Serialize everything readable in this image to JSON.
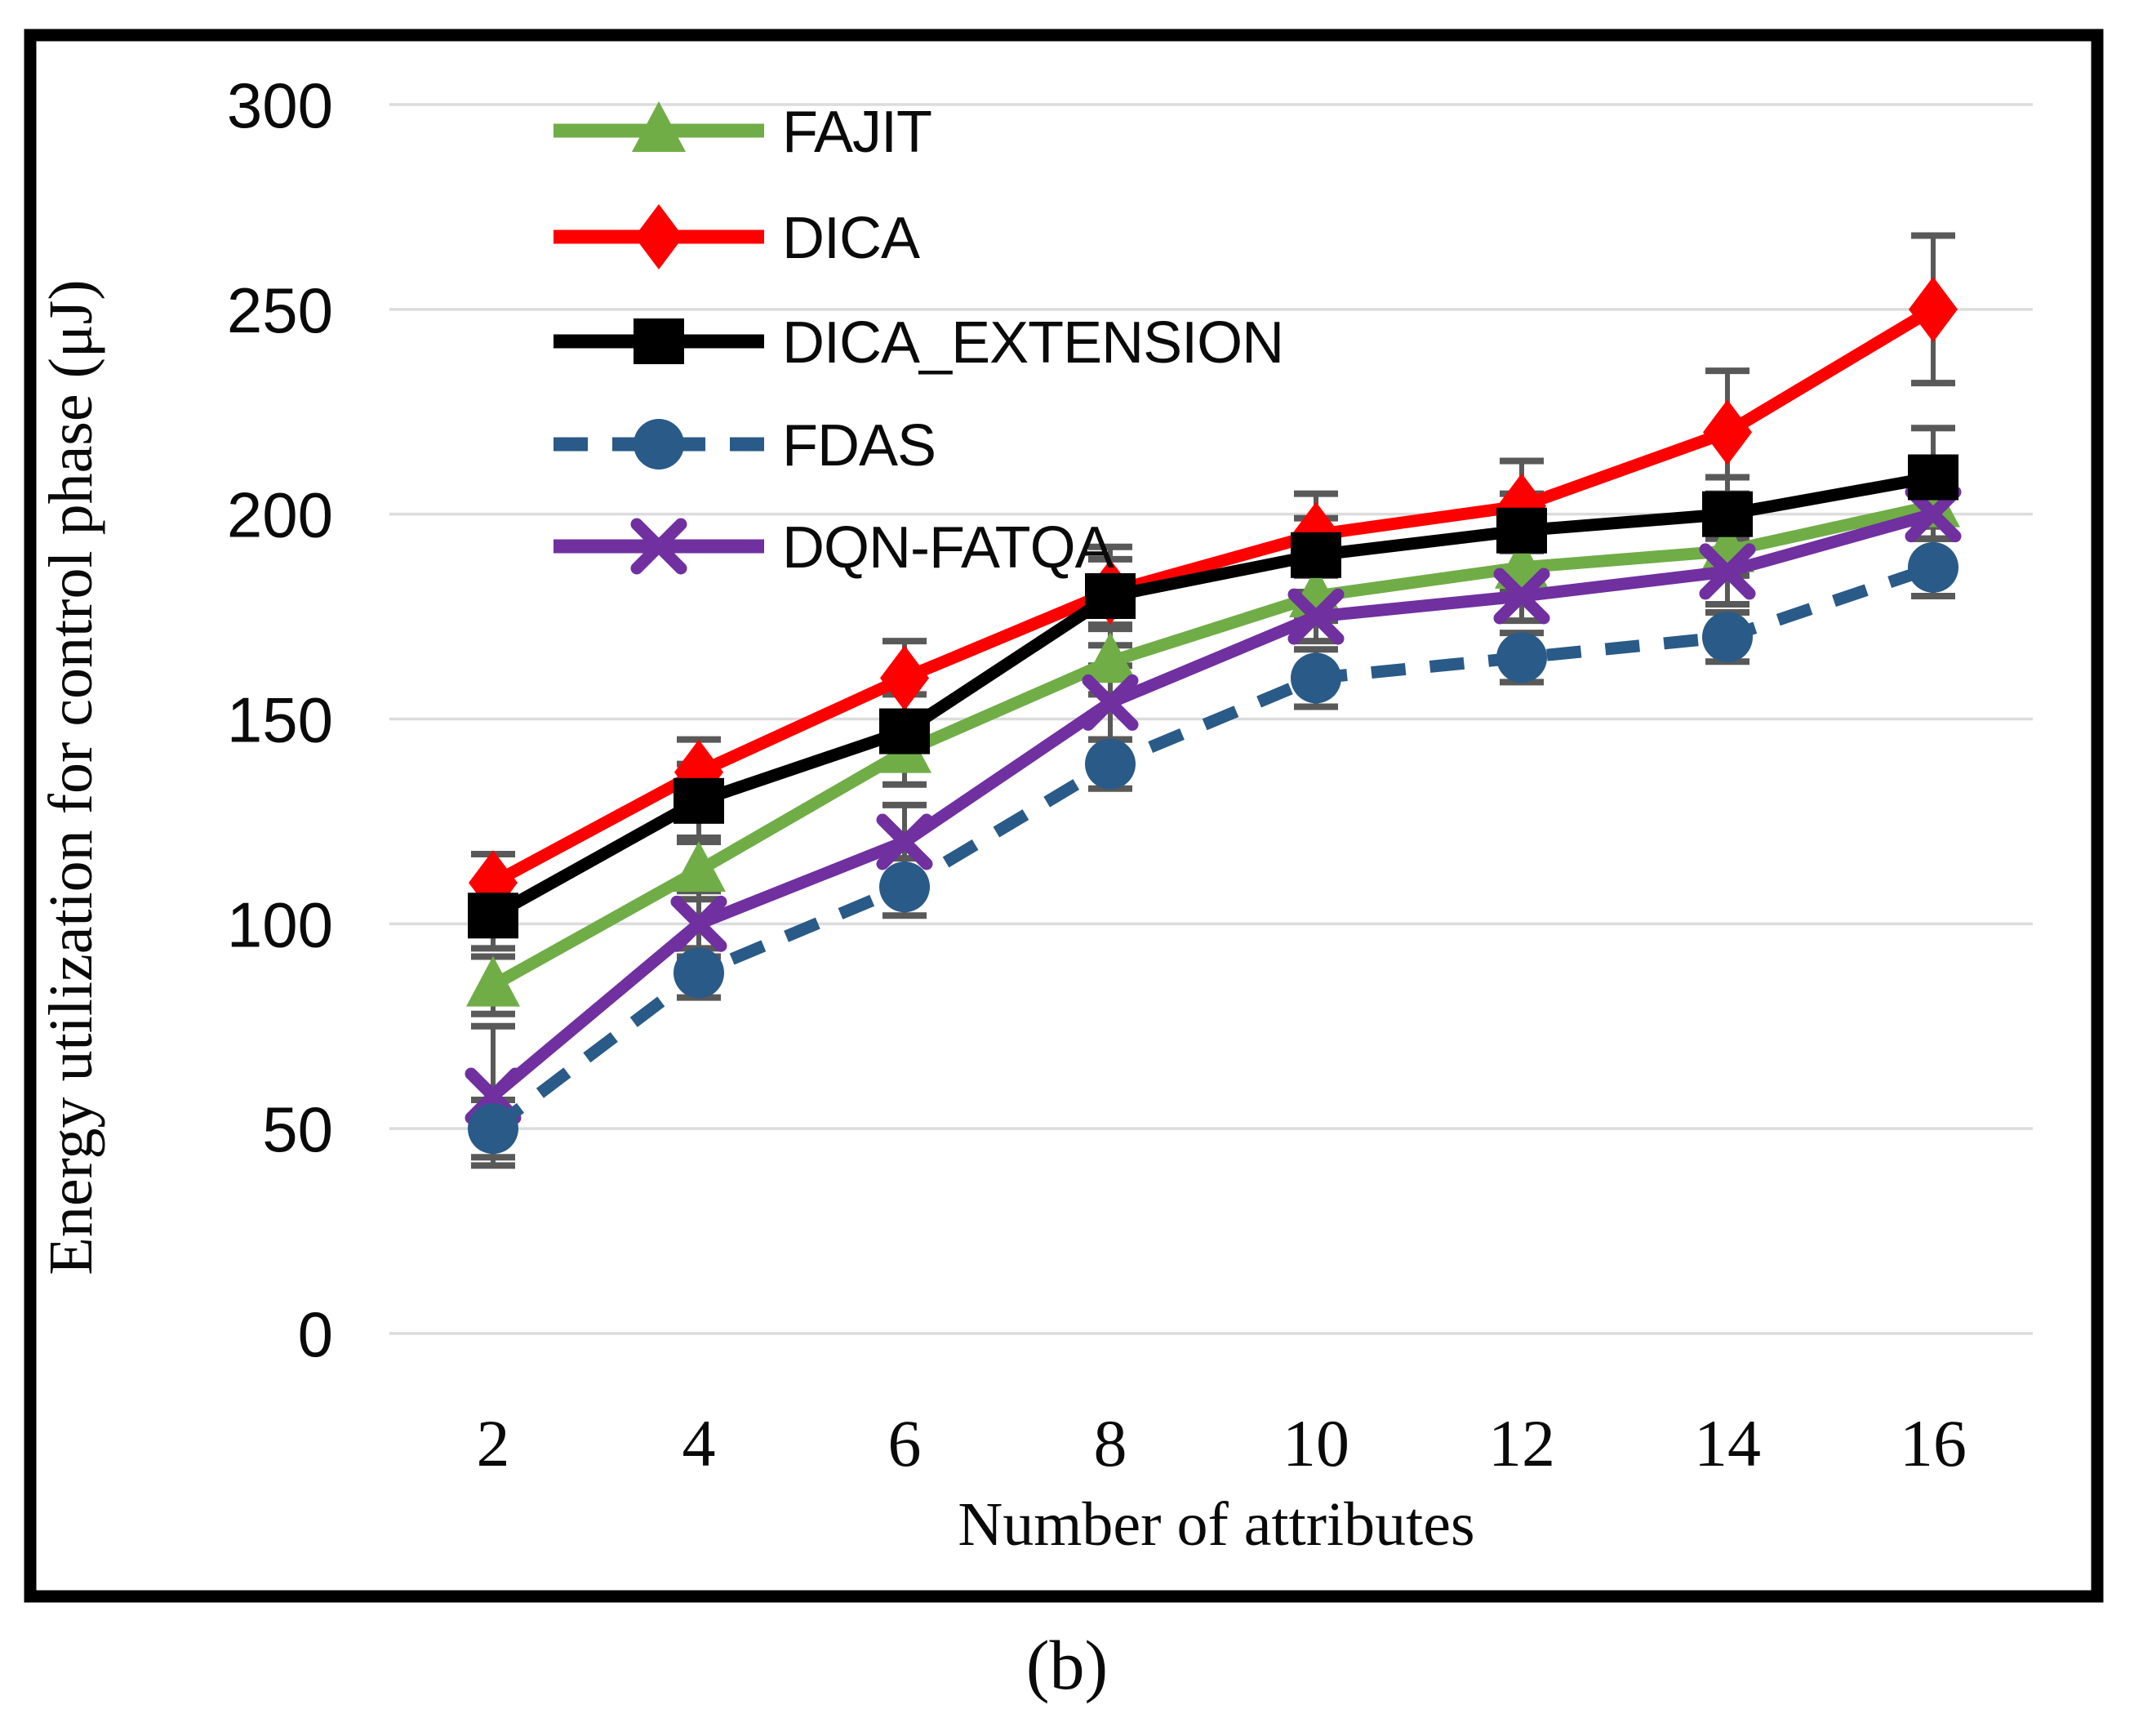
{
  "figure": {
    "caption": "(b)",
    "background": "#ffffff",
    "border_color": "#000000"
  },
  "chart_data": {
    "type": "line",
    "title": "",
    "xlabel": "Number of attributes",
    "ylabel": "Energy utilization  for control phase (μJ)",
    "x": [
      2,
      4,
      6,
      8,
      10,
      12,
      14,
      16
    ],
    "xtick_labels": [
      "2",
      "4",
      "6",
      "8",
      "10",
      "12",
      "14",
      "16"
    ],
    "yticks": [
      0,
      50,
      100,
      150,
      200,
      250,
      300
    ],
    "ylim": [
      0,
      300
    ],
    "grid": "horizontal",
    "gridline_color": "#dcdcdc",
    "error_bar_color": "#595959",
    "legend_position": "top-left-inside",
    "series": [
      {
        "name": "FAJIT",
        "color": "#70ad47",
        "marker": "triangle",
        "line": "solid",
        "values": [
          85,
          113,
          142,
          164,
          180,
          187,
          191,
          202
        ],
        "errors": [
          7,
          7,
          8,
          8,
          6,
          6,
          6,
          8
        ]
      },
      {
        "name": "DICA",
        "color": "#fe0000",
        "marker": "diamond",
        "line": "solid",
        "values": [
          110,
          137,
          160,
          181,
          195,
          202,
          220,
          250
        ],
        "errors": [
          7,
          8,
          9,
          8,
          10,
          11,
          15,
          18
        ]
      },
      {
        "name": "DICA_EXTENSION",
        "color": "#000000",
        "marker": "square",
        "line": "solid",
        "values": [
          102,
          130,
          147,
          180,
          190,
          196,
          200,
          209
        ],
        "errors": [
          8,
          9,
          9,
          12,
          9,
          9,
          9,
          12
        ]
      },
      {
        "name": "FDAS",
        "color": "#2a5a87",
        "marker": "circle",
        "line": "dashed",
        "values": [
          50,
          88,
          109,
          139,
          160,
          165,
          170,
          187
        ],
        "errors": [
          7,
          6,
          7,
          6,
          7,
          6,
          6,
          7
        ]
      },
      {
        "name": "DQN-FATQA",
        "color": "#7030a0",
        "marker": "x",
        "line": "solid",
        "values": [
          58,
          100,
          120,
          154,
          175,
          180,
          186,
          200
        ],
        "errors": [
          17,
          8,
          9,
          9,
          6,
          6,
          8,
          6
        ]
      }
    ]
  }
}
